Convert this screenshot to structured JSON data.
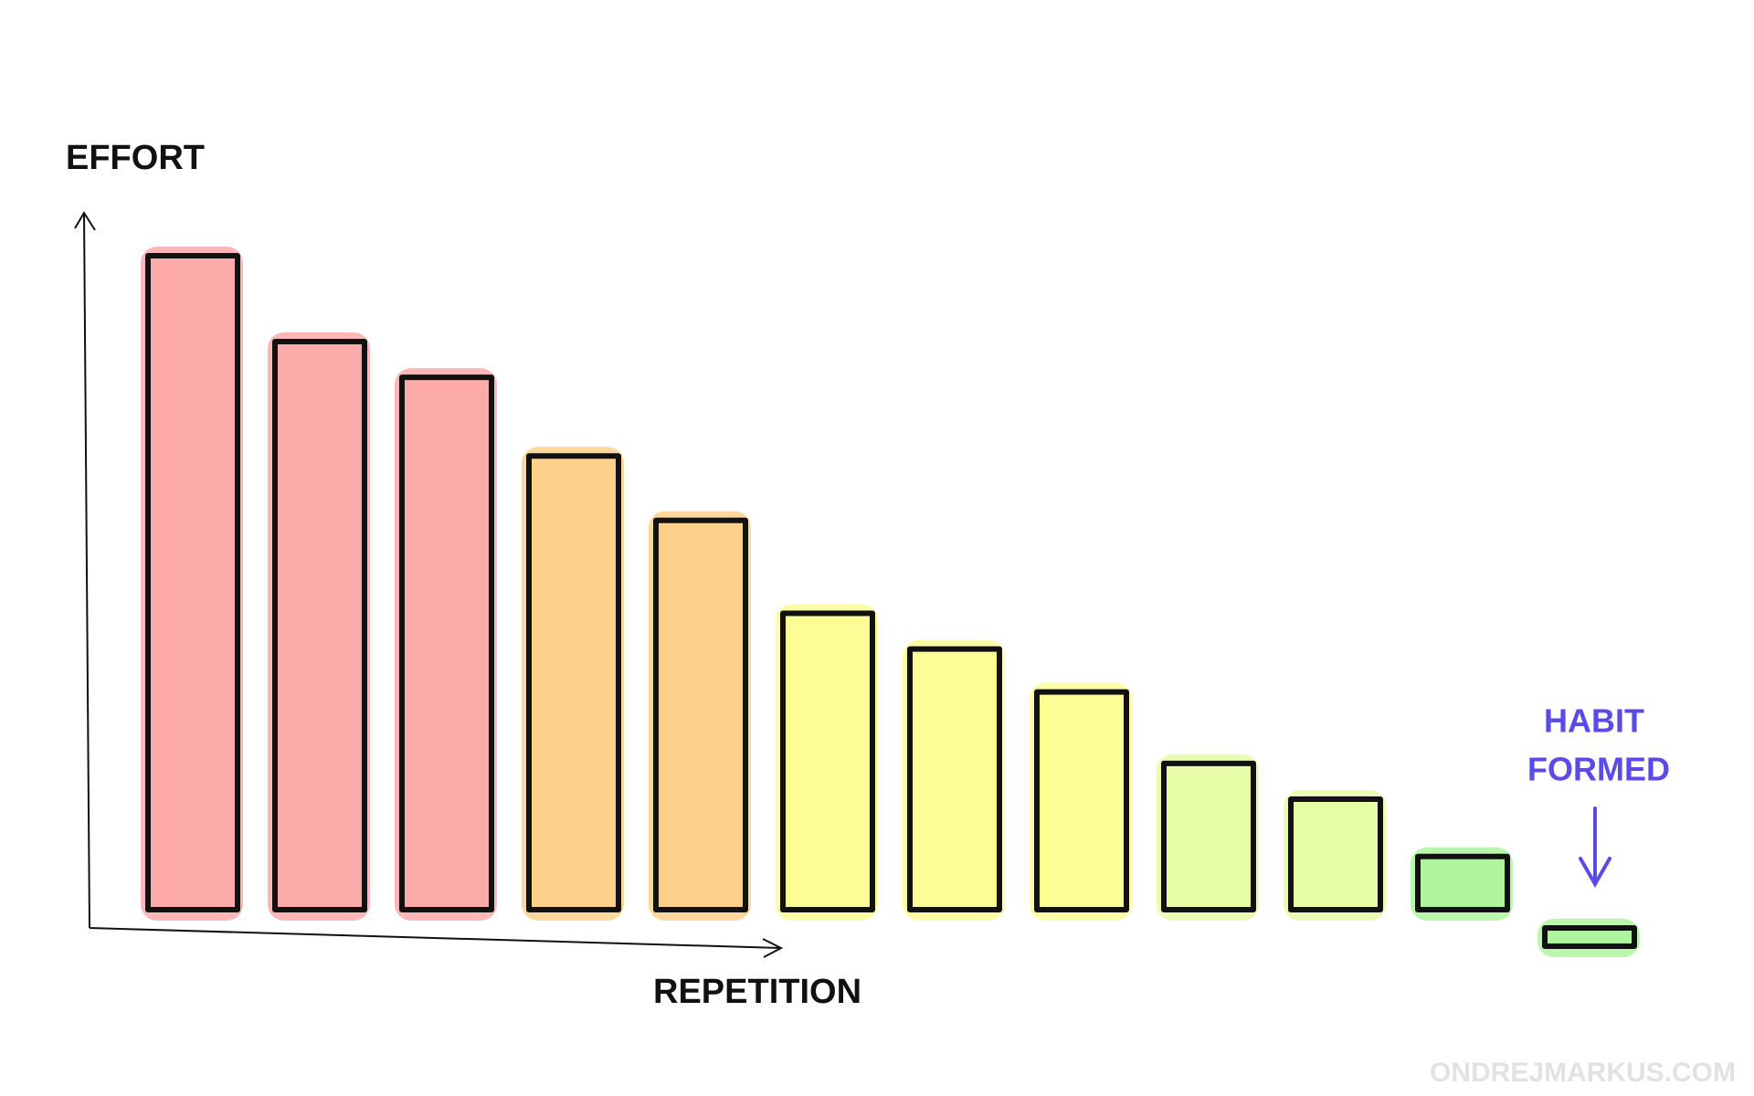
{
  "chart_data": {
    "type": "bar",
    "y_label": "EFFORT",
    "x_label": "REPETITION",
    "annotation": [
      "HABIT",
      "FORMED"
    ],
    "credit": "ONDREJMARKUS.COM",
    "categories": [
      null,
      null,
      null,
      null,
      null,
      null,
      null,
      null,
      null,
      null,
      null,
      null
    ],
    "values": [
      94,
      82,
      77,
      66,
      57,
      44,
      39,
      33,
      23,
      18,
      10,
      0
    ],
    "colors": [
      "#fdaaaa",
      "#fdaaaa",
      "#fdaaaa",
      "#fdd08a",
      "#fdd08a",
      "#fdfd96",
      "#fdfd96",
      "#fdfd96",
      "#e6fca6",
      "#e6fca6",
      "#aef59e",
      "#aef59e"
    ],
    "annotation_color": "#5a4ae8",
    "ylim": [
      0,
      100
    ]
  }
}
